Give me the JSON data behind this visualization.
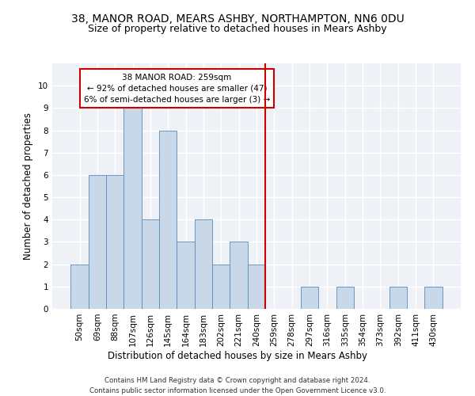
{
  "title1": "38, MANOR ROAD, MEARS ASHBY, NORTHAMPTON, NN6 0DU",
  "title2": "Size of property relative to detached houses in Mears Ashby",
  "xlabel": "Distribution of detached houses by size in Mears Ashby",
  "ylabel": "Number of detached properties",
  "footer1": "Contains HM Land Registry data © Crown copyright and database right 2024.",
  "footer2": "Contains public sector information licensed under the Open Government Licence v3.0.",
  "categories": [
    "50sqm",
    "69sqm",
    "88sqm",
    "107sqm",
    "126sqm",
    "145sqm",
    "164sqm",
    "183sqm",
    "202sqm",
    "221sqm",
    "240sqm",
    "259sqm",
    "278sqm",
    "297sqm",
    "316sqm",
    "335sqm",
    "354sqm",
    "373sqm",
    "392sqm",
    "411sqm",
    "430sqm"
  ],
  "values": [
    2,
    6,
    6,
    9,
    4,
    8,
    3,
    4,
    2,
    3,
    2,
    0,
    0,
    1,
    0,
    1,
    0,
    0,
    1,
    0,
    1
  ],
  "bar_color": "#c8d8e8",
  "bar_edge_color": "#5a8ab5",
  "vline_x_index": 11,
  "vline_color": "#cc0000",
  "annotation_text": "38 MANOR ROAD: 259sqm\n← 92% of detached houses are smaller (47)\n6% of semi-detached houses are larger (3) →",
  "annotation_box_color": "#ffffff",
  "annotation_box_edge": "#cc0000",
  "ylim": [
    0,
    11
  ],
  "yticks": [
    0,
    1,
    2,
    3,
    4,
    5,
    6,
    7,
    8,
    9,
    10,
    11
  ],
  "bg_color": "#eef2f7",
  "grid_color": "#ffffff",
  "fig_bg_color": "#ffffff",
  "title1_fontsize": 10,
  "title2_fontsize": 9,
  "axis_label_fontsize": 8.5,
  "tick_fontsize": 7.5,
  "footer_fontsize": 6.2
}
